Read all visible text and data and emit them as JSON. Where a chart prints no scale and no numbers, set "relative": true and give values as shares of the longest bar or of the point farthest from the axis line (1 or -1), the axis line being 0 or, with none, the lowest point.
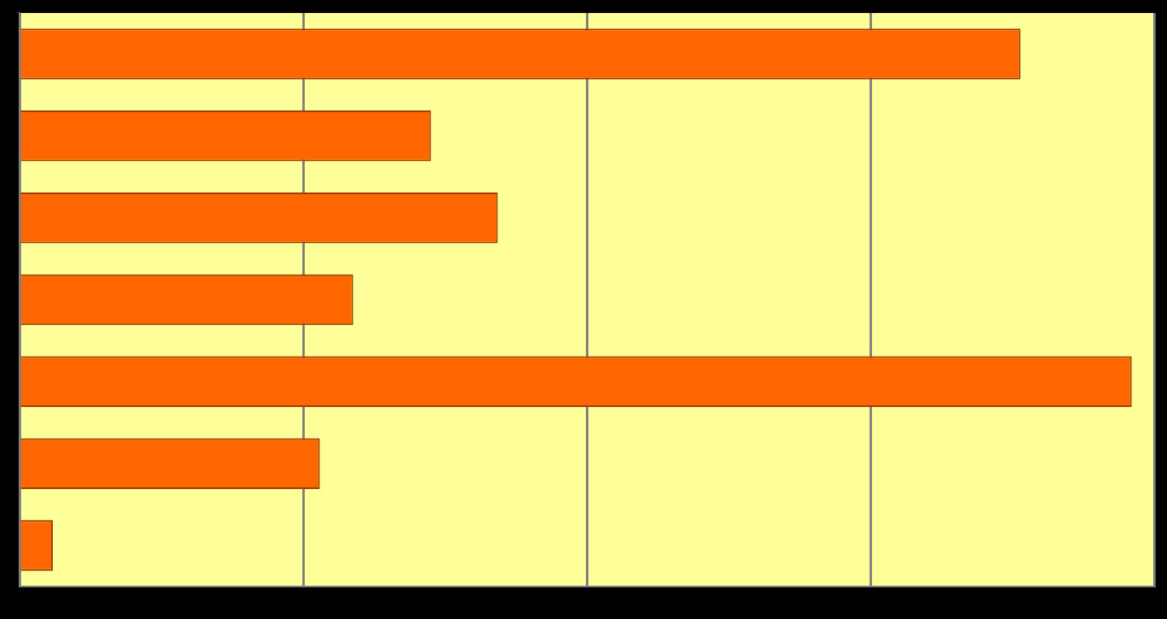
{
  "chart_data": {
    "type": "bar",
    "orientation": "horizontal",
    "relative": true,
    "grid": "x",
    "categories": [
      null,
      null,
      null,
      null,
      null,
      null,
      null
    ],
    "values": [
      0.9,
      0.37,
      0.43,
      0.3,
      1,
      0.27,
      0.03
    ],
    "color": "#ff6600"
  }
}
